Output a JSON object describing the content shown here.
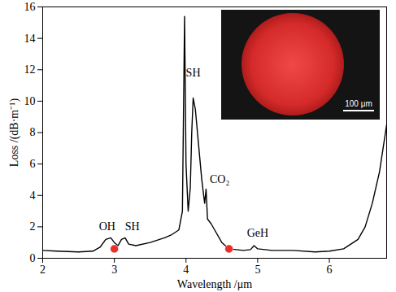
{
  "chart_data": {
    "type": "line",
    "xlabel": "Wavelength /μm",
    "ylabel": "Loss /(dB·m⁻¹)",
    "xlim": [
      2,
      6.8
    ],
    "ylim": [
      0,
      16
    ],
    "xticks": [
      2,
      3,
      4,
      5,
      6
    ],
    "yticks": [
      0,
      2,
      4,
      6,
      8,
      10,
      12,
      14,
      16
    ],
    "color": "#000000",
    "x": [
      2.0,
      2.2,
      2.5,
      2.7,
      2.8,
      2.88,
      2.95,
      3.0,
      3.05,
      3.1,
      3.15,
      3.2,
      3.3,
      3.5,
      3.7,
      3.8,
      3.9,
      3.95,
      3.98,
      4.0,
      4.03,
      4.06,
      4.08,
      4.1,
      4.13,
      4.18,
      4.22,
      4.26,
      4.28,
      4.3,
      4.35,
      4.4,
      4.5,
      4.6,
      4.7,
      4.8,
      4.9,
      4.95,
      5.0,
      5.2,
      5.5,
      5.8,
      6.0,
      6.2,
      6.4,
      6.5,
      6.6,
      6.7,
      6.8
    ],
    "values": [
      0.5,
      0.45,
      0.4,
      0.45,
      0.7,
      1.2,
      1.3,
      1.0,
      0.8,
      1.2,
      1.3,
      0.9,
      0.8,
      1.0,
      1.3,
      1.5,
      1.8,
      3.0,
      15.4,
      6.0,
      3.0,
      4.5,
      8.0,
      10.2,
      9.5,
      7.0,
      5.0,
      3.5,
      4.4,
      2.5,
      2.2,
      1.8,
      1.0,
      0.6,
      0.55,
      0.5,
      0.55,
      0.8,
      0.6,
      0.5,
      0.5,
      0.4,
      0.45,
      0.6,
      1.2,
      2.0,
      3.5,
      5.5,
      8.5
    ],
    "markers": {
      "x": [
        3.0,
        4.6
      ],
      "y": [
        0.6,
        0.6
      ],
      "color": "#e8302a",
      "marker": "circle"
    },
    "annotations": [
      {
        "text": "OH",
        "x": 2.9,
        "y": 2.0
      },
      {
        "text": "SH",
        "x": 3.25,
        "y": 2.0
      },
      {
        "text": "SH",
        "x": 4.1,
        "y": 11.8
      },
      {
        "text": "CO₂",
        "x": 4.47,
        "y": 5.0
      },
      {
        "text": "GeH",
        "x": 5.0,
        "y": 1.6
      }
    ],
    "inset": {
      "scale_bar": "100 μm"
    },
    "grid": false
  }
}
